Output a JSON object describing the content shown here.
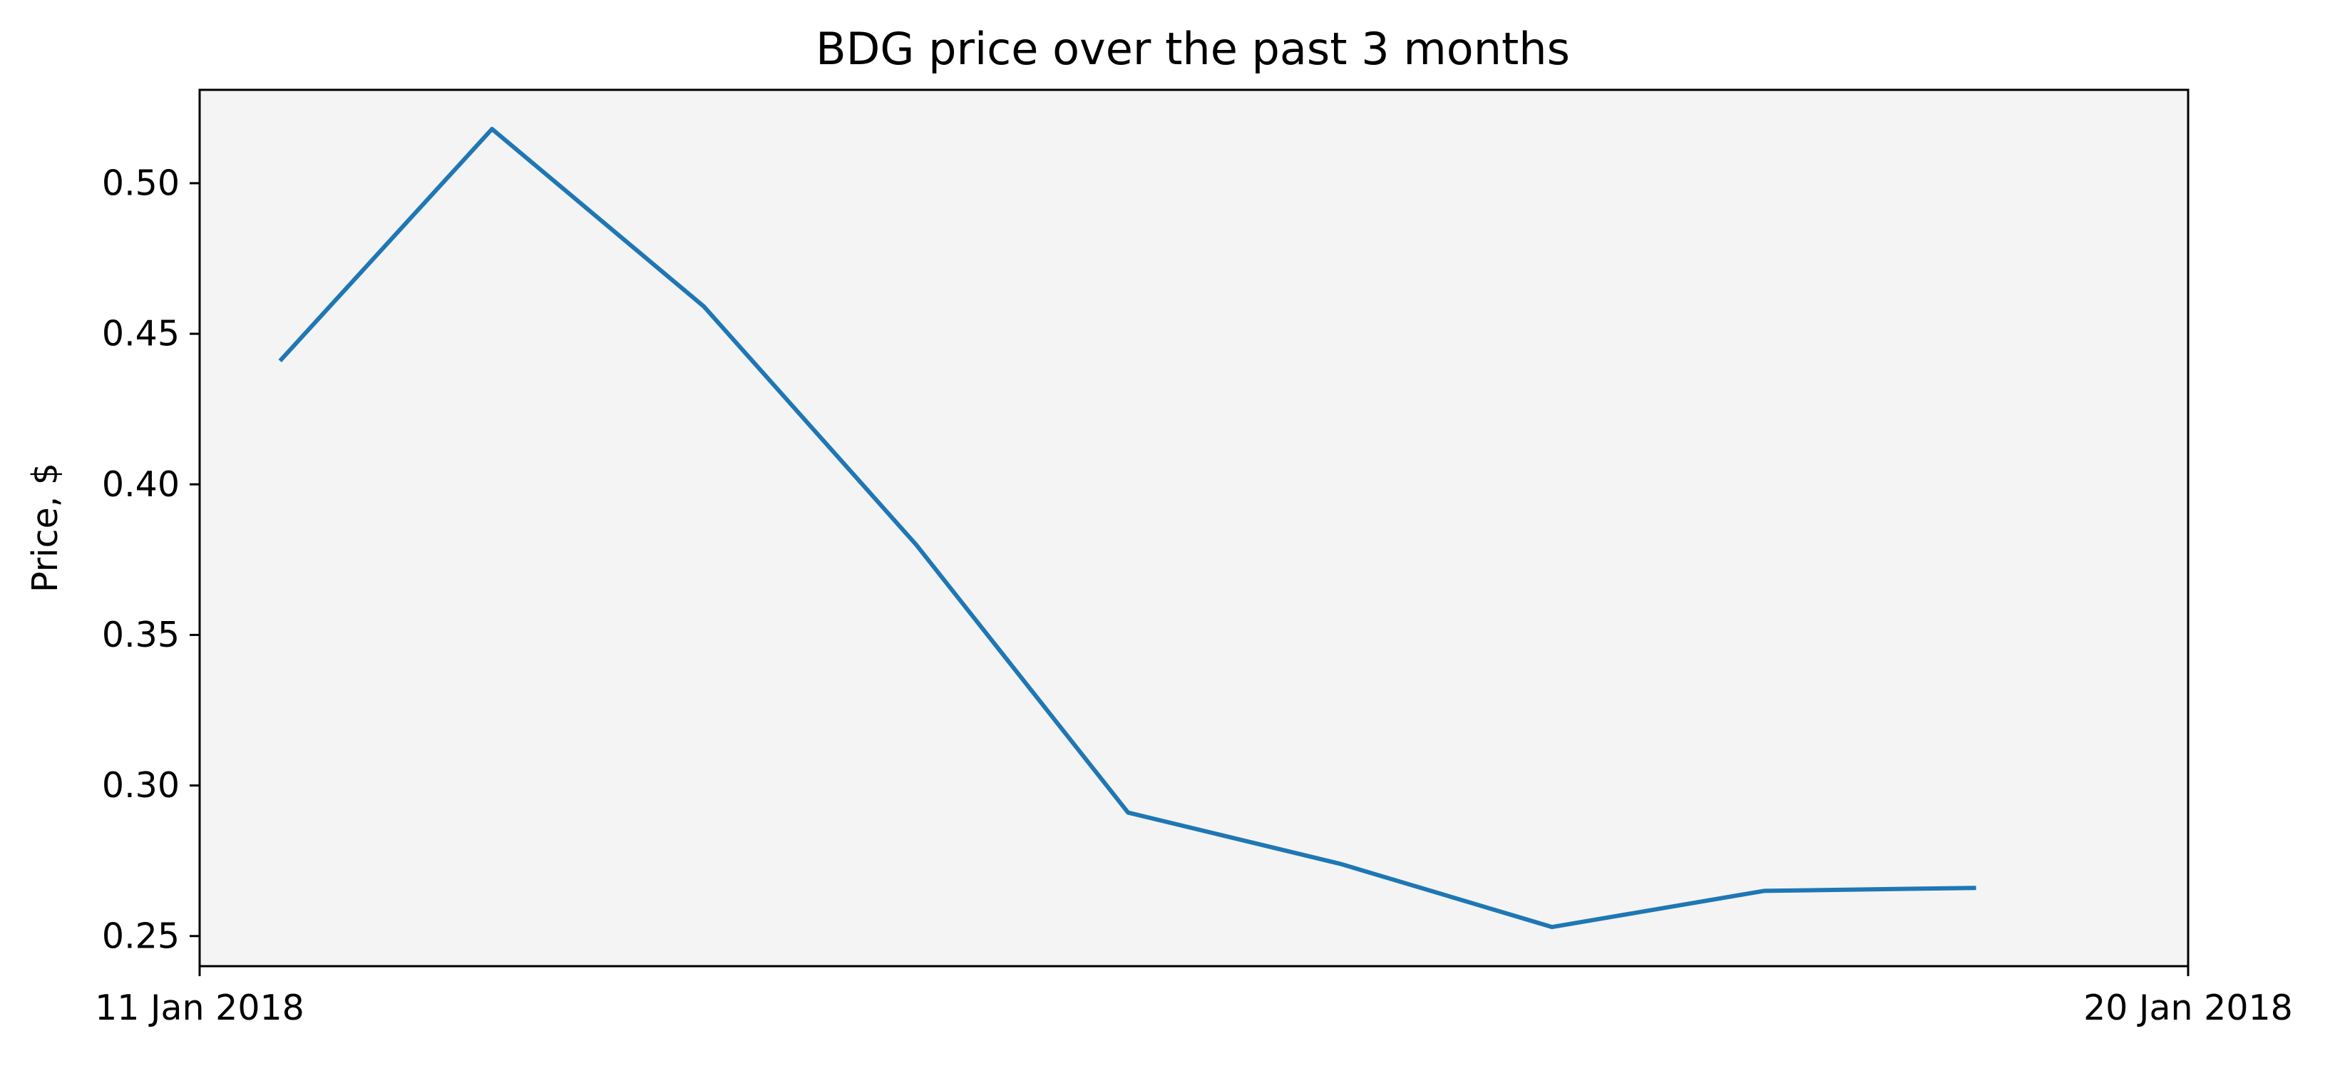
{
  "chart_data": {
    "type": "line",
    "title": "BDG price over the past 3 months",
    "xlabel": "",
    "ylabel": "Price, $",
    "x_tick_labels": [
      "11 Jan 2018",
      "20 Jan 2018"
    ],
    "y_ticks": [
      0.25,
      0.3,
      0.35,
      0.4,
      0.45,
      0.5
    ],
    "y_tick_labels": [
      "0.25",
      "0.30",
      "0.35",
      "0.40",
      "0.45",
      "0.50"
    ],
    "ylim": [
      0.24,
      0.531
    ],
    "grid": false,
    "plot_background": "#f4f4f4",
    "line_color": "#1f77b4",
    "series": [
      {
        "x": [
          "2018-01-11",
          "2018-01-12",
          "2018-01-13",
          "2018-01-14",
          "2018-01-15",
          "2018-01-16",
          "2018-01-17",
          "2018-01-18",
          "2018-01-19"
        ],
        "values": [
          0.441,
          0.518,
          0.459,
          0.38,
          0.291,
          0.274,
          0.253,
          0.265,
          0.266
        ]
      }
    ],
    "xlim": [
      "2018-01-10T14:54",
      "2018-01-20"
    ]
  }
}
